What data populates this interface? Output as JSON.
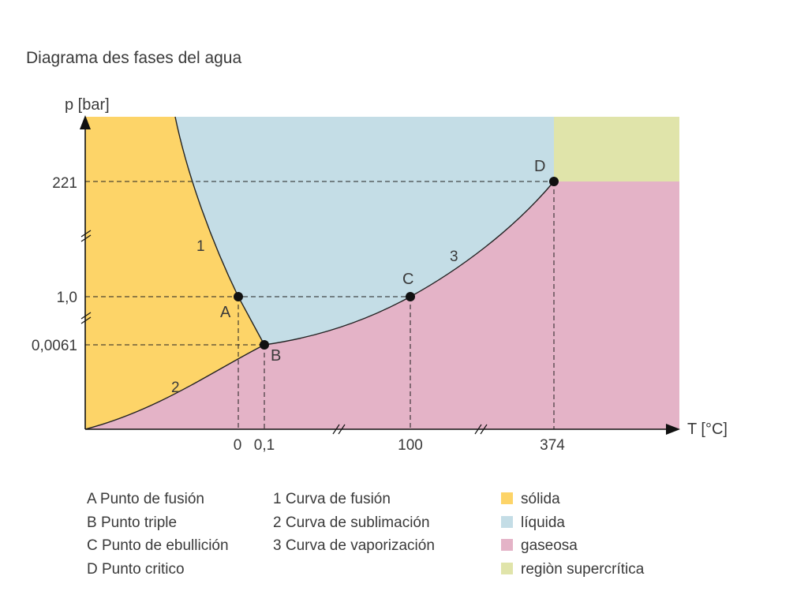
{
  "chart_data": {
    "type": "phase-diagram",
    "title": "Diagrama des fases del agua",
    "xlabel": "T [°C]",
    "ylabel": "p [bar]",
    "x_ticks": [
      "0",
      "0,1",
      "100",
      "374"
    ],
    "y_ticks": [
      "221",
      "1,0",
      "0,0061"
    ],
    "points": [
      {
        "id": "A",
        "name": "Punto de fusión",
        "T": 0,
        "p": 1.0
      },
      {
        "id": "B",
        "name": "Punto triple",
        "T": 0.1,
        "p": 0.0061
      },
      {
        "id": "C",
        "name": "Punto de ebullición",
        "T": 100,
        "p": 1.0
      },
      {
        "id": "D",
        "name": "Punto critico",
        "T": 374,
        "p": 221
      }
    ],
    "curves": [
      {
        "id": "1",
        "name": "Curva de fusión"
      },
      {
        "id": "2",
        "name": "Curva de sublimación"
      },
      {
        "id": "3",
        "name": "Curva de vaporización"
      }
    ],
    "regions": [
      {
        "name": "sólida",
        "color": "#fdd468"
      },
      {
        "name": "líquida",
        "color": "#c4dde6"
      },
      {
        "name": "gaseosa",
        "color": "#e4b3c7"
      },
      {
        "name": "regiòn supercrítica",
        "color": "#e0e4aa"
      }
    ],
    "axis_breaks": {
      "x": 2,
      "y": 2
    }
  },
  "legend": {
    "points": [
      {
        "label": "A Punto de fusión"
      },
      {
        "label": "B Punto triple"
      },
      {
        "label": "C Punto de ebullición"
      },
      {
        "label": "D Punto critico"
      }
    ],
    "curves": [
      {
        "label": "1 Curva de fusión"
      },
      {
        "label": "2 Curva de sublimación"
      },
      {
        "label": "3 Curva de vaporización"
      }
    ]
  }
}
